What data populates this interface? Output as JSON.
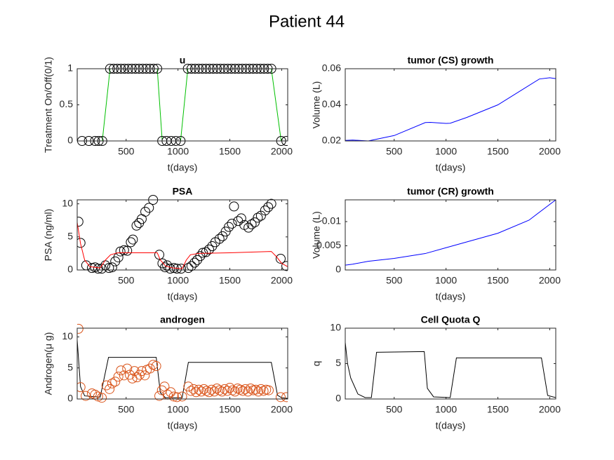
{
  "title": "Patient 44",
  "chart_data": [
    {
      "type": "line",
      "title": "u",
      "xlabel": "t(days)",
      "ylabel": "Treatment On/Off(0/1)",
      "xlim": [
        28,
        2058
      ],
      "ylim": [
        0,
        1
      ],
      "xticks": [
        500,
        1000,
        1500,
        2000
      ],
      "yticks": [
        0,
        0.5,
        1
      ],
      "series": [
        {
          "style": "line+markers",
          "color": "#00c000",
          "marker_color": "#000000",
          "x": [
            75,
            140,
            200,
            235,
            270,
            345,
            380,
            415,
            450,
            485,
            520,
            555,
            590,
            625,
            660,
            695,
            730,
            765,
            800,
            848,
            890,
            935,
            980,
            1025,
            1095,
            1130,
            1165,
            1200,
            1235,
            1270,
            1305,
            1340,
            1375,
            1410,
            1445,
            1480,
            1515,
            1550,
            1585,
            1620,
            1655,
            1690,
            1725,
            1760,
            1795,
            1830,
            1865,
            1900,
            1995,
            2045
          ],
          "values": [
            0,
            0,
            0,
            0,
            0,
            1,
            1,
            1,
            1,
            1,
            1,
            1,
            1,
            1,
            1,
            1,
            1,
            1,
            1,
            0,
            0,
            0,
            0,
            0,
            1,
            1,
            1,
            1,
            1,
            1,
            1,
            1,
            1,
            1,
            1,
            1,
            1,
            1,
            1,
            1,
            1,
            1,
            1,
            1,
            1,
            1,
            1,
            1,
            0,
            0
          ]
        }
      ]
    },
    {
      "type": "line",
      "title": "tumor (CS) growth",
      "xlabel": "t(days)",
      "ylabel": "Volume (L)",
      "xlim": [
        28,
        2058
      ],
      "ylim": [
        0.02,
        0.06
      ],
      "xticks": [
        500,
        1000,
        1500,
        2000
      ],
      "yticks": [
        0.02,
        0.04,
        0.06
      ],
      "series": [
        {
          "style": "line",
          "color": "#0000ff",
          "x": [
            28,
            100,
            250,
            500,
            800,
            850,
            1000,
            1040,
            1200,
            1500,
            1900,
            2000,
            2058
          ],
          "values": [
            0.0203,
            0.0205,
            0.02,
            0.023,
            0.0302,
            0.0303,
            0.0297,
            0.0298,
            0.033,
            0.04,
            0.0543,
            0.055,
            0.0545
          ]
        }
      ]
    },
    {
      "type": "line",
      "title": "PSA",
      "xlabel": "t(days)",
      "ylabel": "PSA (ng/ml)",
      "xlim": [
        28,
        2058
      ],
      "ylim": [
        0,
        10.6
      ],
      "xticks": [
        500,
        1000,
        1500,
        2000
      ],
      "yticks": [
        0,
        5,
        10
      ],
      "series": [
        {
          "style": "markers",
          "color": "#000000",
          "x": [
            40,
            60,
            115,
            170,
            200,
            230,
            265,
            300,
            335,
            365,
            395,
            425,
            445,
            480,
            510,
            545,
            565,
            600,
            625,
            650,
            685,
            720,
            760,
            820,
            850,
            875,
            895,
            925,
            960,
            990,
            1030,
            1100,
            1130,
            1160,
            1185,
            1215,
            1240,
            1270,
            1300,
            1330,
            1360,
            1400,
            1430,
            1460,
            1490,
            1520,
            1540,
            1580,
            1610,
            1640,
            1680,
            1710,
            1740,
            1770,
            1800,
            1840,
            1870,
            1900,
            1990,
            2045
          ],
          "values": [
            7.3,
            4.1,
            0.7,
            0.3,
            0.4,
            0.2,
            0.2,
            0.7,
            0.3,
            0.4,
            1.3,
            1.9,
            2.8,
            3.0,
            2.9,
            4.2,
            4.6,
            6.7,
            7.1,
            7.7,
            8.8,
            9.4,
            10.6,
            2.3,
            1.0,
            0.4,
            0.7,
            0.2,
            0.3,
            0.2,
            0.2,
            0.3,
            0.6,
            1.1,
            1.5,
            2.1,
            2.6,
            2.7,
            3.1,
            3.6,
            4.2,
            4.7,
            5.1,
            5.8,
            6.5,
            7.0,
            9.6,
            7.4,
            7.8,
            6.8,
            6.4,
            6.9,
            7.2,
            7.9,
            8.2,
            9.0,
            9.5,
            10.0,
            1.7,
            0.6
          ]
        },
        {
          "style": "line",
          "color": "#ff0000",
          "x": [
            28,
            60,
            100,
            150,
            250,
            300,
            350,
            420,
            500,
            800,
            830,
            880,
            950,
            1040,
            1080,
            1120,
            1200,
            1500,
            1900,
            1950,
            2000,
            2058
          ],
          "values": [
            7.2,
            4,
            1.5,
            0.5,
            0.3,
            1.5,
            2.3,
            2.6,
            2.6,
            2.6,
            1.5,
            0.6,
            0.3,
            0.2,
            1.5,
            2.3,
            2.5,
            2.6,
            2.8,
            2.0,
            1.0,
            0.5
          ]
        }
      ]
    },
    {
      "type": "line",
      "title": "tumor (CR) growth",
      "xlabel": "t(days)",
      "ylabel": "Volume (L)",
      "xlim": [
        28,
        2058
      ],
      "ylim": [
        0,
        0.0145
      ],
      "xticks": [
        500,
        1000,
        1500,
        2000
      ],
      "yticks": [
        0,
        0.005,
        0.01
      ],
      "series": [
        {
          "style": "line",
          "color": "#0000ff",
          "x": [
            28,
            100,
            250,
            500,
            800,
            1000,
            1500,
            1800,
            2058
          ],
          "values": [
            0.001,
            0.0012,
            0.0018,
            0.0024,
            0.0034,
            0.0046,
            0.0076,
            0.0103,
            0.0145
          ]
        }
      ]
    },
    {
      "type": "line",
      "title": "androgen",
      "xlabel": "t(days)",
      "ylabel": "Androgen(μ g)",
      "xlim": [
        28,
        2058
      ],
      "ylim": [
        0,
        11.4
      ],
      "xticks": [
        500,
        1000,
        1500,
        2000
      ],
      "yticks": [
        0,
        5,
        10
      ],
      "series": [
        {
          "style": "line",
          "color": "#000000",
          "x": [
            28,
            60,
            100,
            250,
            330,
            790,
            830,
            880,
            1040,
            1100,
            1900,
            1960,
            2000,
            2058
          ],
          "values": [
            9.5,
            2,
            0.5,
            0.3,
            6.7,
            6.7,
            1,
            0.2,
            0.2,
            5.9,
            5.9,
            0.6,
            0.2,
            0.1
          ]
        },
        {
          "style": "markers",
          "color": "#d95319",
          "x": [
            40,
            60,
            110,
            170,
            200,
            230,
            265,
            310,
            340,
            365,
            395,
            425,
            450,
            480,
            510,
            535,
            560,
            580,
            605,
            630,
            650,
            680,
            700,
            730,
            760,
            790,
            820,
            845,
            870,
            900,
            930,
            960,
            990,
            1040,
            1100,
            1125,
            1150,
            1175,
            1200,
            1225,
            1250,
            1275,
            1300,
            1325,
            1350,
            1375,
            1400,
            1425,
            1450,
            1475,
            1500,
            1525,
            1550,
            1575,
            1600,
            1625,
            1650,
            1675,
            1700,
            1725,
            1750,
            1775,
            1800,
            1825,
            1850,
            1875,
            1990,
            2045
          ],
          "values": [
            11.3,
            1.9,
            0.5,
            0.9,
            0.7,
            0.4,
            0.2,
            2.2,
            1.6,
            2.5,
            2.8,
            3.6,
            4.6,
            3.8,
            4.9,
            3.9,
            3.3,
            4.5,
            3.5,
            3.9,
            4.5,
            3.8,
            4.7,
            4.9,
            5.5,
            5.3,
            0.5,
            1.4,
            2.0,
            0.7,
            1.1,
            0.4,
            0.3,
            0.4,
            2.0,
            1.3,
            1.6,
            1.1,
            1.5,
            1.2,
            1.6,
            1.3,
            1.1,
            1.5,
            1.2,
            1.7,
            1.4,
            1.2,
            1.6,
            1.3,
            1.8,
            1.4,
            1.2,
            1.7,
            1.5,
            1.3,
            1.6,
            1.2,
            1.7,
            1.4,
            1.5,
            1.2,
            1.6,
            1.3,
            1.5,
            1.4,
            0.3,
            0.3
          ]
        }
      ]
    },
    {
      "type": "line",
      "title": "Cell Quota Q",
      "xlabel": "t(days)",
      "ylabel": "q",
      "xlim": [
        28,
        2058
      ],
      "ylim": [
        0,
        10
      ],
      "xticks": [
        500,
        1000,
        1500,
        2000
      ],
      "yticks": [
        0,
        5,
        10
      ],
      "series": [
        {
          "style": "line",
          "color": "#000000",
          "x": [
            28,
            50,
            80,
            150,
            220,
            280,
            330,
            790,
            820,
            880,
            1040,
            1100,
            1920,
            1980,
            2058
          ],
          "values": [
            8,
            5,
            3,
            0.7,
            0.2,
            0.2,
            6.6,
            6.7,
            1.5,
            0.3,
            0.2,
            5.8,
            5.8,
            0.5,
            0.2
          ]
        }
      ]
    }
  ]
}
